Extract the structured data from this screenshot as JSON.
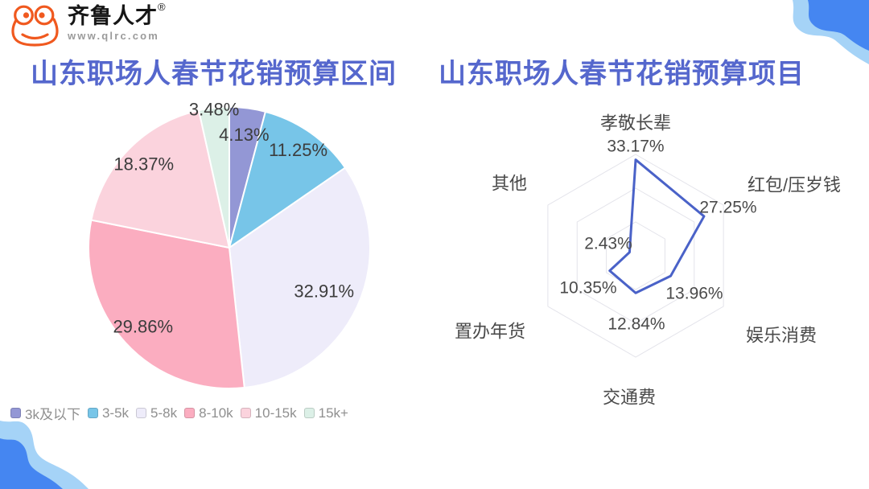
{
  "brand": {
    "name": "齐鲁人才",
    "registered_mark": "®",
    "website": "www.qlrc.com",
    "logo_color": "#f0591f"
  },
  "titles": {
    "left": "山东职场人春节花销预算区间",
    "right": "山东职场人春节花销预算项目",
    "color": "#5567cd"
  },
  "decor": {
    "blob_light": "#a5d3f7",
    "blob_dark": "#4586f1"
  },
  "chart_data": [
    {
      "type": "pie",
      "title": "山东职场人春节花销预算区间",
      "categories": [
        "3k及以下",
        "3-5k",
        "5-8k",
        "8-10k",
        "10-15k",
        "15k+"
      ],
      "values": [
        4.13,
        11.25,
        32.91,
        29.86,
        18.37,
        3.48
      ],
      "labels": [
        "4.13%",
        "11.25%",
        "32.91%",
        "29.86%",
        "18.37%",
        "3.48%"
      ],
      "colors": [
        "#9397d5",
        "#77c5e8",
        "#eeecfa",
        "#fbadc0",
        "#fbd3dd",
        "#dcf0e7"
      ],
      "unit": "%",
      "start_angle": "top",
      "direction": "clockwise",
      "legend_position": "bottom-left",
      "label_color": "#3c3c3c"
    },
    {
      "type": "radar",
      "title": "山东职场人春节花销预算项目",
      "categories": [
        "孝敬长辈",
        "红包/压岁钱",
        "娱乐消费",
        "交通费",
        "置办年货",
        "其他"
      ],
      "values": [
        33.17,
        27.25,
        13.96,
        12.84,
        10.35,
        2.43
      ],
      "labels": [
        "33.17%",
        "27.25%",
        "13.96%",
        "12.84%",
        "10.35%",
        "2.43%"
      ],
      "unit": "%",
      "max": 35,
      "rings": 3,
      "shape": "hexagon",
      "line_color": "#4a62c8",
      "grid_color": "#e3e3ea",
      "label_color": "#4a4a4a"
    }
  ]
}
